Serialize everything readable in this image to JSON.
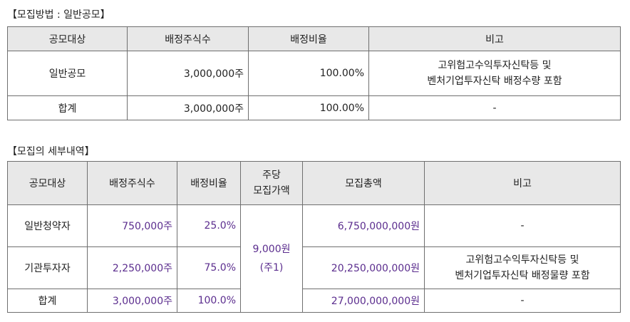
{
  "section1": {
    "title": "【모집방법 : 일반공모】",
    "headers": [
      "공모대상",
      "배정주식수",
      "배정비율",
      "비고"
    ],
    "row_general": {
      "target": "일반공모",
      "shares": "3,000,000주",
      "ratio": "100.00%",
      "note_line1": "고위험고수익투자신탁등 및",
      "note_line2": "벤처기업투자신탁 배정수량 포함"
    },
    "row_total": {
      "target": "합계",
      "shares": "3,000,000주",
      "ratio": "100.00%",
      "note": "-"
    }
  },
  "section2": {
    "title": "【모집의 세부내역】",
    "headers": {
      "target": "공모대상",
      "shares": "배정주식수",
      "ratio": "배정비율",
      "price_line1": "주당",
      "price_line2": "모집가액",
      "amount": "모집총액",
      "note": "비고"
    },
    "price_per_share": "9,000원",
    "price_note": "(주1)",
    "rows": [
      {
        "target": "일반청약자",
        "shares": "750,000주",
        "ratio": "25.0%",
        "amount": "6,750,000,000원",
        "note": "-"
      },
      {
        "target": "기관투자자",
        "shares": "2,250,000주",
        "ratio": "75.0%",
        "amount": "20,250,000,000원",
        "note_line1": "고위험고수익투자신탁등 및",
        "note_line2": "벤처기업투자신탁 배정물량 포함"
      },
      {
        "target": "합계",
        "shares": "3,000,000주",
        "ratio": "100.0%",
        "amount": "27,000,000,000원",
        "note": "-"
      }
    ]
  }
}
